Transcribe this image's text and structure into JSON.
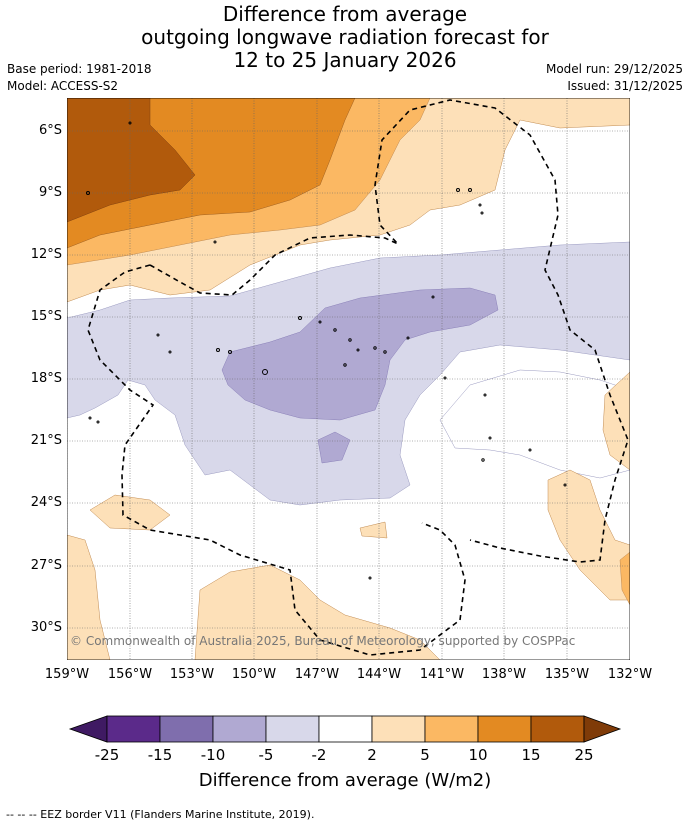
{
  "title": {
    "line1": "Difference from average",
    "line2": "outgoing longwave radiation forecast for",
    "line3": "12 to 25 January 2026"
  },
  "meta": {
    "base_period": "Base period: 1981-2018",
    "model": "Model: ACCESS-S2",
    "model_run": "Model run: 29/12/2025",
    "issued": "Issued: 31/12/2025"
  },
  "credit": "© Commonwealth of Australia 2025, Bureau of Meteorology, supported by COSPPac",
  "lat_labels": [
    "6°S",
    "9°S",
    "12°S",
    "15°S",
    "18°S",
    "21°S",
    "24°S",
    "27°S",
    "30°S"
  ],
  "lon_labels": [
    "159°W",
    "156°W",
    "153°W",
    "150°W",
    "147°W",
    "144°W",
    "141°W",
    "138°W",
    "135°W",
    "132°W"
  ],
  "colorbar": {
    "ticks": [
      "-25",
      "-15",
      "-10",
      "-5",
      "-2",
      "2",
      "5",
      "10",
      "15",
      "25"
    ],
    "colors": [
      "#3f1a63",
      "#5b2a8a",
      "#7f6ead",
      "#b0a9d2",
      "#d8d8ea",
      "#ffffff",
      "#fde0b8",
      "#fbb863",
      "#e38a22",
      "#b15a0c",
      "#7f3b08"
    ],
    "title": "Difference from average (W/m2)"
  },
  "footer": "--  --  -- EEZ border V11 (Flanders Marine Institute, 2019)."
}
